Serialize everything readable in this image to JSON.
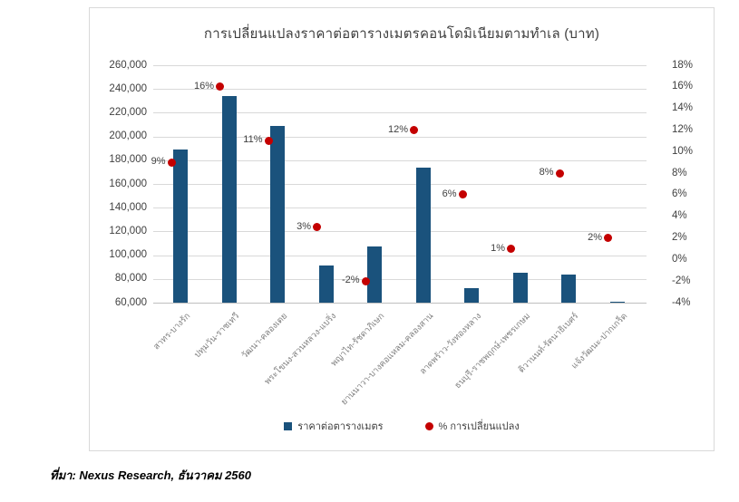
{
  "title": "การเปลี่ยนแปลงราคาต่อตารางเมตรคอนโดมิเนียมตามทำเล (บาท)",
  "source_note": "ที่มา: Nexus Research, ธันวาคม 2560",
  "legend": [
    {
      "label": "ราคาต่อตารางเมตร",
      "marker": "square",
      "color": "#1a527c"
    },
    {
      "label": "% การเปลี่ยนแปลง",
      "marker": "circle",
      "color": "#c40000"
    }
  ],
  "chart_data": {
    "type": "bar",
    "title": "การเปลี่ยนแปลงราคาต่อตารางเมตรคอนโดมิเนียมตามทำเล (บาท)",
    "categories": [
      "สาทร-บางรัก",
      "ปทุมวัน-ราชเทวี",
      "วัฒนา-คลองเตย",
      "พระโขนง-สวนหลวง-แบริ่ง",
      "พญาไท-รัชดาภิเษก",
      "ยานนาวา-บางคอแหลม-คลองสาน",
      "ลาดพร้าว-วังทองหลาง",
      "ธนบุรี-ราชพฤกษ์-เพชรเกษม",
      "ติวานนท์-รัตนาธิเบศร์",
      "แจ้งวัฒนะ-ปากเกร็ด"
    ],
    "series": [
      {
        "name": "ราคาต่อตารางเมตร",
        "type": "bar",
        "axis": "left",
        "values": [
          189000,
          234000,
          209000,
          91000,
          107000,
          174000,
          72000,
          85000,
          84000,
          61000
        ]
      },
      {
        "name": "% การเปลี่ยนแปลง",
        "type": "scatter",
        "axis": "right",
        "values": [
          9,
          16,
          11,
          3,
          -2,
          12,
          6,
          1,
          8,
          2
        ],
        "labels": [
          "9%",
          "16%",
          "11%",
          "3%",
          "-2%",
          "12%",
          "6%",
          "1%",
          "8%",
          "2%"
        ]
      }
    ],
    "left_axis": {
      "min": 60000,
      "max": 260000,
      "step": 20000,
      "tick_labels": [
        "260,000",
        "240,000",
        "220,000",
        "200,000",
        "180,000",
        "160,000",
        "140,000",
        "120,000",
        "100,000",
        "80,000",
        "60,000"
      ]
    },
    "right_axis": {
      "min": -4,
      "max": 18,
      "step": 2,
      "tick_labels": [
        "18%",
        "16%",
        "14%",
        "12%",
        "10%",
        "8%",
        "6%",
        "4%",
        "2%",
        "0%",
        "-2%",
        "-4%"
      ]
    },
    "grid": true,
    "legend_position": "bottom",
    "colors": {
      "bar": "#1a527c",
      "dot": "#c40000",
      "gridline": "#d9d9d9"
    }
  }
}
